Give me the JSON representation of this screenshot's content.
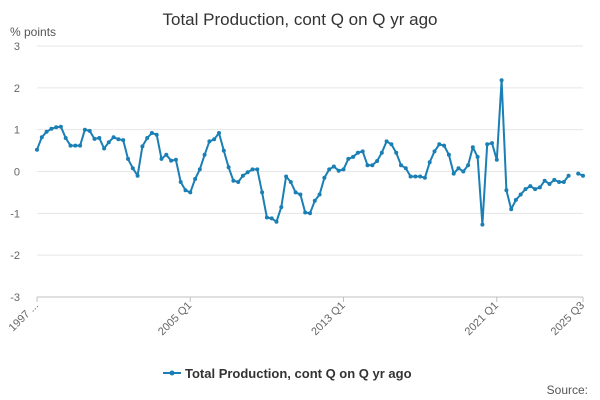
{
  "chart_data": {
    "type": "line",
    "title": "Total Production, cont Q on Q yr ago",
    "unit_label": "% points",
    "ylim": [
      -3,
      3
    ],
    "yticks": [
      3,
      2,
      1,
      0,
      -1,
      -2,
      -3
    ],
    "xlim": [
      1997.0,
      2025.5
    ],
    "xtick_labels": [
      {
        "label": "1997 ...",
        "x": 1997.0
      },
      {
        "label": "2005 Q1",
        "x": 2005.0
      },
      {
        "label": "2013 Q1",
        "x": 2013.0
      },
      {
        "label": "2021 Q1",
        "x": 2021.0
      },
      {
        "label": "2025 Q3",
        "x": 2025.5
      }
    ],
    "grid": true,
    "legend_position": "bottom",
    "source_label": "Source:",
    "series": [
      {
        "name": "Total Production, cont Q on Q yr ago",
        "color": "#1a7fb4",
        "x": [
          1997.0,
          1997.25,
          1997.5,
          1997.75,
          1998.0,
          1998.25,
          1998.5,
          1998.75,
          1999.0,
          1999.25,
          1999.5,
          1999.75,
          2000.0,
          2000.25,
          2000.5,
          2000.75,
          2001.0,
          2001.25,
          2001.5,
          2001.75,
          2002.0,
          2002.25,
          2002.5,
          2002.75,
          2003.0,
          2003.25,
          2003.5,
          2003.75,
          2004.0,
          2004.25,
          2004.5,
          2004.75,
          2005.0,
          2005.25,
          2005.5,
          2005.75,
          2006.0,
          2006.25,
          2006.5,
          2006.75,
          2007.0,
          2007.25,
          2007.5,
          2007.75,
          2008.0,
          2008.25,
          2008.5,
          2008.75,
          2009.0,
          2009.25,
          2009.5,
          2009.75,
          2010.0,
          2010.25,
          2010.5,
          2010.75,
          2011.0,
          2011.25,
          2011.5,
          2011.75,
          2012.0,
          2012.25,
          2012.5,
          2012.75,
          2013.0,
          2013.25,
          2013.5,
          2013.75,
          2014.0,
          2014.25,
          2014.5,
          2014.75,
          2015.0,
          2015.25,
          2015.5,
          2015.75,
          2016.0,
          2016.25,
          2016.5,
          2016.75,
          2017.0,
          2017.25,
          2017.5,
          2017.75,
          2018.0,
          2018.25,
          2018.5,
          2018.75,
          2019.0,
          2019.25,
          2019.5,
          2019.75,
          2020.0,
          2020.25,
          2020.5,
          2020.75,
          2021.0,
          2021.25,
          2021.5,
          2021.75,
          2022.0,
          2022.25,
          2022.5,
          2022.75,
          2023.0,
          2023.25,
          2023.5,
          2023.75,
          2024.0,
          2024.25,
          2024.5,
          2024.75,
          2025.0,
          2025.25,
          2025.5
        ],
        "y": [
          0.52,
          0.82,
          0.95,
          1.02,
          1.06,
          1.07,
          0.8,
          0.62,
          0.62,
          0.62,
          1.0,
          0.97,
          0.78,
          0.8,
          0.55,
          0.7,
          0.82,
          0.77,
          0.75,
          0.3,
          0.08,
          -0.1,
          0.6,
          0.8,
          0.92,
          0.88,
          0.3,
          0.4,
          0.26,
          0.28,
          -0.25,
          -0.45,
          -0.5,
          -0.18,
          0.05,
          0.4,
          0.72,
          0.77,
          0.92,
          0.5,
          0.1,
          -0.22,
          -0.25,
          -0.1,
          -0.02,
          0.05,
          0.05,
          -0.5,
          -1.1,
          -1.12,
          -1.2,
          -0.85,
          -0.12,
          -0.25,
          -0.5,
          -0.55,
          -0.98,
          -1.0,
          -0.7,
          -0.55,
          -0.15,
          0.05,
          0.12,
          0.02,
          0.05,
          0.3,
          0.35,
          0.45,
          0.48,
          0.15,
          0.15,
          0.25,
          0.45,
          0.72,
          0.65,
          0.45,
          0.15,
          0.08,
          -0.12,
          -0.12,
          -0.12,
          -0.15,
          0.22,
          0.48,
          0.65,
          0.62,
          0.4,
          -0.05,
          0.08,
          0.0,
          0.15,
          0.58,
          0.35,
          -1.27,
          0.65,
          0.68,
          0.28,
          2.18,
          -0.45,
          -0.9,
          -0.68,
          -0.55,
          -0.42,
          -0.35,
          -0.42,
          -0.38,
          -0.22,
          -0.3,
          -0.2,
          -0.25,
          -0.25,
          -0.1,
          null,
          -0.05,
          -0.1
        ]
      }
    ]
  }
}
